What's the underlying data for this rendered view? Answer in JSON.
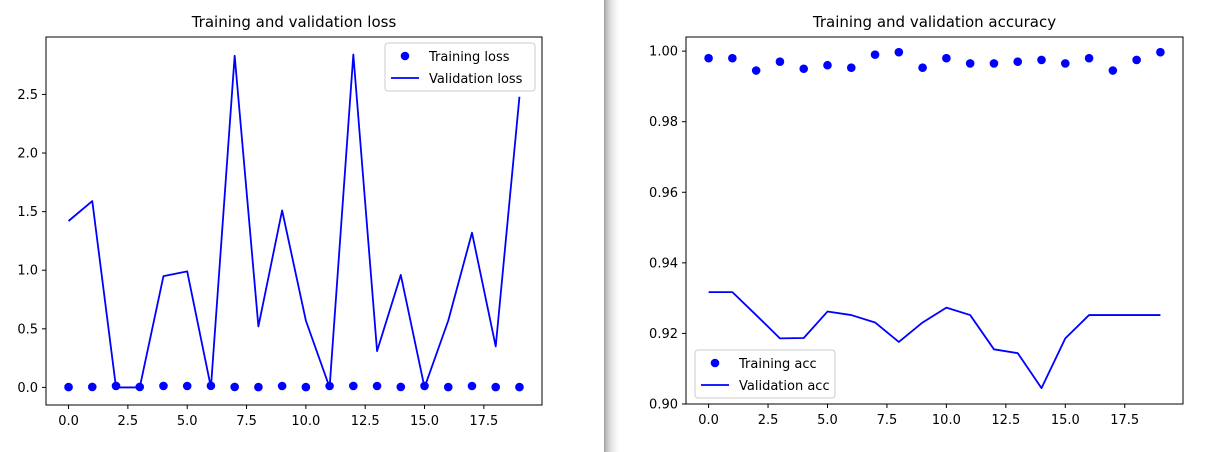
{
  "colors": {
    "series": "#0000ff",
    "axis": "#000000",
    "legend_border": "#cccccc"
  },
  "chart_data": [
    {
      "type": "line",
      "title": "Training and validation loss",
      "xlabel": "",
      "ylabel": "",
      "xlim": [
        -0.95,
        19.95
      ],
      "ylim": [
        -0.15,
        2.99
      ],
      "xticks": [
        0,
        2.5,
        5,
        7.5,
        10,
        12.5,
        15,
        17.5
      ],
      "xtick_labels": [
        "0.0",
        "2.5",
        "5.0",
        "7.5",
        "10.0",
        "12.5",
        "15.0",
        "17.5"
      ],
      "yticks": [
        0,
        0.5,
        1,
        1.5,
        2,
        2.5
      ],
      "ytick_labels": [
        "0.0",
        "0.5",
        "1.0",
        "1.5",
        "2.0",
        "2.5"
      ],
      "legend_position": "top-right",
      "grid": false,
      "x": [
        0,
        1,
        2,
        3,
        4,
        5,
        6,
        7,
        8,
        9,
        10,
        11,
        12,
        13,
        14,
        15,
        16,
        17,
        18,
        19
      ],
      "series": [
        {
          "name": "Training loss",
          "style": "markers",
          "values": [
            0.003,
            0.004,
            0.013,
            0.004,
            0.013,
            0.012,
            0.014,
            0.004,
            0.003,
            0.012,
            0.003,
            0.012,
            0.013,
            0.012,
            0.004,
            0.013,
            0.003,
            0.012,
            0.003,
            0.003
          ]
        },
        {
          "name": "Validation loss",
          "style": "line",
          "values": [
            1.42,
            1.59,
            0.0,
            0.0,
            0.95,
            0.99,
            0.0,
            2.83,
            0.52,
            1.51,
            0.57,
            0.0,
            2.84,
            0.31,
            0.96,
            0.0,
            0.57,
            1.32,
            0.35,
            2.48
          ]
        }
      ]
    },
    {
      "type": "line",
      "title": "Training and validation accuracy",
      "xlabel": "",
      "ylabel": "",
      "xlim": [
        -0.95,
        19.95
      ],
      "ylim": [
        0.9,
        1.004
      ],
      "xticks": [
        0,
        2.5,
        5,
        7.5,
        10,
        12.5,
        15,
        17.5
      ],
      "xtick_labels": [
        "0.0",
        "2.5",
        "5.0",
        "7.5",
        "10.0",
        "12.5",
        "15.0",
        "17.5"
      ],
      "yticks": [
        0.9,
        0.92,
        0.94,
        0.96,
        0.98,
        1.0
      ],
      "ytick_labels": [
        "0.90",
        "0.92",
        "0.94",
        "0.96",
        "0.98",
        "1.00"
      ],
      "legend_position": "bottom-left",
      "grid": false,
      "x": [
        0,
        1,
        2,
        3,
        4,
        5,
        6,
        7,
        8,
        9,
        10,
        11,
        12,
        13,
        14,
        15,
        16,
        17,
        18,
        19
      ],
      "series": [
        {
          "name": "Training acc",
          "style": "markers",
          "values": [
            0.998,
            0.998,
            0.9945,
            0.997,
            0.995,
            0.996,
            0.9953,
            0.999,
            0.9997,
            0.9953,
            0.998,
            0.9965,
            0.9965,
            0.997,
            0.9975,
            0.9965,
            0.998,
            0.9945,
            0.9975,
            0.9997
          ]
        },
        {
          "name": "Validation acc",
          "style": "line",
          "values": [
            0.9317,
            0.9317,
            0.9252,
            0.9186,
            0.9187,
            0.9262,
            0.9252,
            0.9231,
            0.9176,
            0.9231,
            0.9273,
            0.9252,
            0.9155,
            0.9144,
            0.9045,
            0.9186,
            0.9252,
            0.9252,
            0.9252,
            0.9252
          ]
        }
      ]
    }
  ]
}
